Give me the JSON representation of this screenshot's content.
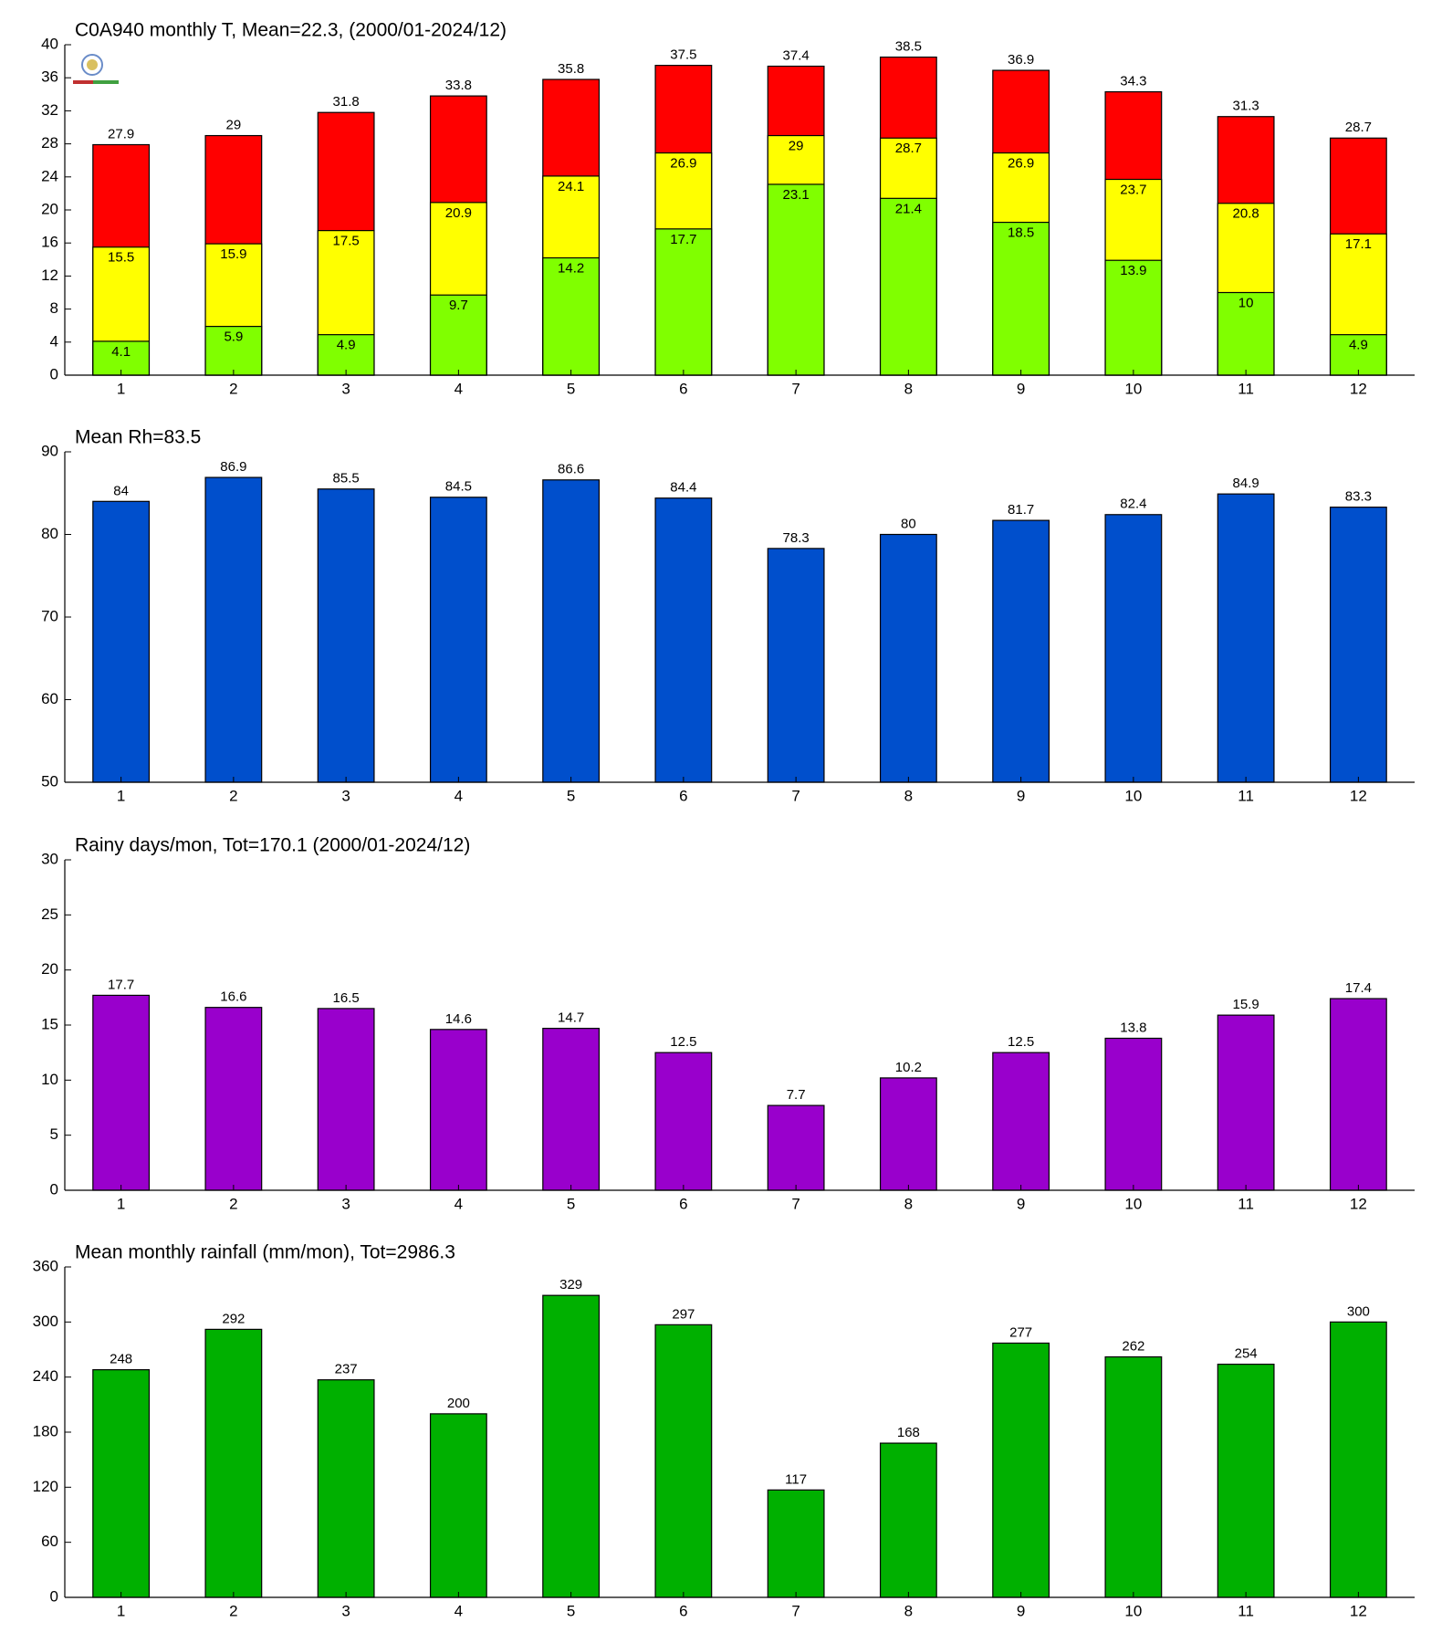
{
  "chart_data": [
    {
      "type": "bar",
      "title": "C0A940 monthly T, Mean=22.3, (2000/01-2024/12)",
      "categories": [
        1,
        2,
        3,
        4,
        5,
        6,
        7,
        8,
        9,
        10,
        11,
        12
      ],
      "series": [
        {
          "color": "#ff0000",
          "values": [
            27.9,
            29,
            31.8,
            33.8,
            35.8,
            37.5,
            37.4,
            38.5,
            36.9,
            34.3,
            31.3,
            28.7
          ]
        },
        {
          "color": "#ffff00",
          "values": [
            15.5,
            15.9,
            17.5,
            20.9,
            24.1,
            26.9,
            29,
            28.7,
            26.9,
            23.7,
            20.8,
            17.1
          ]
        },
        {
          "color": "#80ff00",
          "values": [
            4.1,
            5.9,
            4.9,
            9.7,
            14.2,
            17.7,
            23.1,
            21.4,
            18.5,
            13.9,
            10,
            4.9
          ]
        }
      ],
      "ylim": [
        0,
        40
      ],
      "yticks": [
        0,
        4,
        8,
        12,
        16,
        20,
        24,
        28,
        32,
        36,
        40
      ]
    },
    {
      "type": "bar",
      "title": "Mean Rh=83.5",
      "categories": [
        1,
        2,
        3,
        4,
        5,
        6,
        7,
        8,
        9,
        10,
        11,
        12
      ],
      "series": [
        {
          "color": "#004fcc",
          "values": [
            84,
            86.9,
            85.5,
            84.5,
            86.6,
            84.4,
            78.3,
            80,
            81.7,
            82.4,
            84.9,
            83.3
          ]
        }
      ],
      "ylim": [
        50,
        90
      ],
      "yticks": [
        50,
        60,
        70,
        80,
        90
      ]
    },
    {
      "type": "bar",
      "title": "Rainy days/mon, Tot=170.1 (2000/01-2024/12)",
      "categories": [
        1,
        2,
        3,
        4,
        5,
        6,
        7,
        8,
        9,
        10,
        11,
        12
      ],
      "series": [
        {
          "color": "#9900cc",
          "values": [
            17.7,
            16.6,
            16.5,
            14.6,
            14.7,
            12.5,
            7.7,
            10.2,
            12.5,
            13.8,
            15.9,
            17.4
          ]
        }
      ],
      "ylim": [
        0,
        30
      ],
      "yticks": [
        0,
        5,
        10,
        15,
        20,
        25,
        30
      ]
    },
    {
      "type": "bar",
      "title": "Mean monthly rainfall (mm/mon), Tot=2986.3",
      "categories": [
        1,
        2,
        3,
        4,
        5,
        6,
        7,
        8,
        9,
        10,
        11,
        12
      ],
      "series": [
        {
          "color": "#00b000",
          "values": [
            248,
            292,
            237,
            200,
            329,
            297,
            117,
            168,
            277,
            262,
            254,
            300
          ]
        }
      ],
      "ylim": [
        0,
        360
      ],
      "yticks": [
        0,
        60,
        120,
        180,
        240,
        300,
        360
      ]
    }
  ]
}
